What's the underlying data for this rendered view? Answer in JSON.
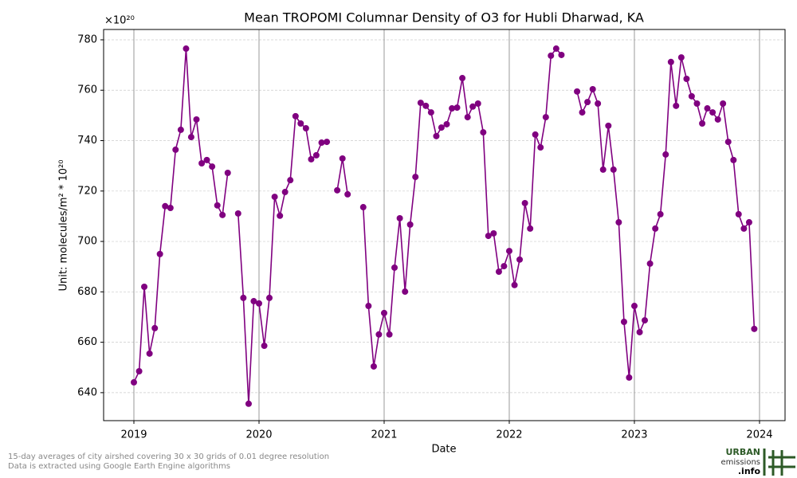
{
  "chart_data": {
    "type": "line",
    "title": "Mean TROPOMI Columnar Density of O3 for Hubli Dharwad, KA",
    "x_label": "Date",
    "y_label": "Unit: molecules/m² * 10²⁰",
    "y_offset_label": "×10²⁰",
    "footnote": [
      "15-day averages of city airshed covering 30 x 30 grids of 0.01 degree resolution",
      "Data is extracted using Google Earth Engine algorithms"
    ],
    "logo": [
      "URBAN",
      "emissions",
      ".info"
    ],
    "series": [
      {
        "name": "O3",
        "color": "#800080",
        "x": [
          2019.0,
          2019.042,
          2019.083,
          2019.125,
          2019.167,
          2019.208,
          2019.25,
          2019.292,
          2019.333,
          2019.375,
          2019.417,
          2019.458,
          2019.5,
          2019.542,
          2019.583,
          2019.625,
          2019.667,
          2019.708,
          2019.75,
          2019.792,
          2019.833,
          2019.875,
          2019.917,
          2019.958,
          2020.0,
          2020.042,
          2020.083,
          2020.125,
          2020.167,
          2020.208,
          2020.25,
          2020.292,
          2020.333,
          2020.375,
          2020.417,
          2020.458,
          2020.5,
          2020.542,
          2020.583,
          2020.625,
          2020.667,
          2020.708,
          2020.75,
          2020.792,
          2020.833,
          2020.875,
          2020.917,
          2020.958,
          2021.0,
          2021.042,
          2021.083,
          2021.125,
          2021.167,
          2021.208,
          2021.25,
          2021.292,
          2021.333,
          2021.375,
          2021.417,
          2021.458,
          2021.5,
          2021.542,
          2021.583,
          2021.625,
          2021.667,
          2021.708,
          2021.75,
          2021.792,
          2021.833,
          2021.875,
          2021.917,
          2021.958,
          2022.0,
          2022.042,
          2022.083,
          2022.125,
          2022.167,
          2022.208,
          2022.25,
          2022.292,
          2022.333,
          2022.375,
          2022.417,
          2022.458,
          2022.5,
          2022.542,
          2022.583,
          2022.625,
          2022.667,
          2022.708,
          2022.75,
          2022.792,
          2022.833,
          2022.875,
          2022.917,
          2022.958,
          2023.0,
          2023.042,
          2023.083,
          2023.125,
          2023.167,
          2023.208,
          2023.25,
          2023.292,
          2023.333,
          2023.375,
          2023.417,
          2023.458,
          2023.5,
          2023.542,
          2023.583,
          2023.625,
          2023.667,
          2023.708,
          2023.75,
          2023.792,
          2023.833,
          2023.875,
          2023.917,
          2023.958
        ],
        "values": [
          644.1,
          648.5,
          682,
          655.5,
          665.6,
          695,
          714,
          713.3,
          736.4,
          744.3,
          776.5,
          741.4,
          748.4,
          731,
          732.3,
          729.7,
          714.3,
          710.5,
          727.2,
          null,
          711.1,
          677.6,
          635.6,
          676.3,
          675.4,
          658.6,
          677.6,
          717.7,
          710.2,
          719.6,
          724.3,
          749.7,
          746.8,
          744.9,
          732.6,
          734.2,
          739.2,
          739.5,
          null,
          720.3,
          732.9,
          718.7,
          null,
          null,
          713.6,
          674.4,
          650.4,
          663.1,
          671.6,
          663.1,
          689.6,
          709.2,
          680.1,
          706.7,
          725.6,
          755,
          753.8,
          751.2,
          741.8,
          745.2,
          746.5,
          752.8,
          753.1,
          764.8,
          749.3,
          753.5,
          754.7,
          743.3,
          702.2,
          703.2,
          688,
          690.2,
          696.2,
          682.7,
          692.8,
          715.2,
          705.1,
          742.4,
          737.3,
          749.3,
          773.7,
          776.5,
          774,
          null,
          null,
          759.5,
          751.2,
          755.3,
          760.4,
          754.7,
          728.5,
          745.9,
          728.5,
          707.6,
          668.1,
          646,
          674.4,
          664,
          668.7,
          691.2,
          705.1,
          710.8,
          734.5,
          771.2,
          753.8,
          773,
          764.5,
          757.6,
          754.7,
          746.8,
          752.8,
          751.2,
          748.4,
          754.7,
          739.5,
          732.3,
          710.8,
          705.1,
          707.6,
          665.3
        ]
      }
    ],
    "xlim": [
      2018.758,
      2024.204
    ],
    "xticks": [
      2019,
      2020,
      2021,
      2022,
      2023,
      2024
    ],
    "ylim": [
      628.9,
      784.1
    ],
    "yticks": [
      640,
      660,
      680,
      700,
      720,
      740,
      760,
      780
    ],
    "grid": true
  }
}
